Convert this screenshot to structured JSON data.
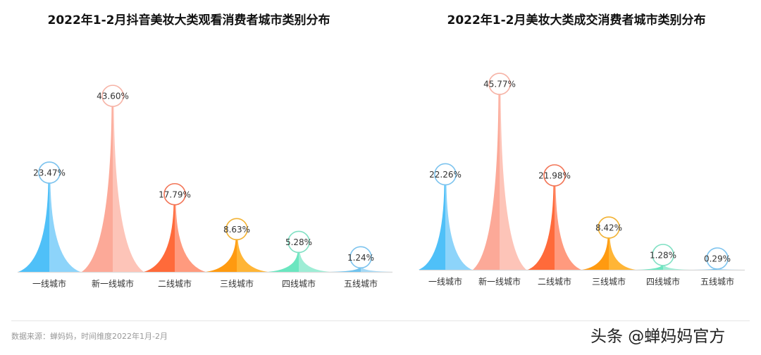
{
  "chart_data": [
    {
      "type": "bar",
      "title": "2022年1-2月抖音美妆大类观看消费者城市类别分布",
      "categories": [
        "一线城市",
        "新一线城市",
        "二线城市",
        "三线城市",
        "四线城市",
        "五线城市"
      ],
      "values": [
        23.47,
        43.6,
        17.79,
        8.63,
        5.28,
        1.24
      ],
      "labels": [
        "23.47%",
        "43.60%",
        "17.79%",
        "8.63%",
        "5.28%",
        "1.24%"
      ],
      "unit": "%",
      "xlabel": "",
      "ylabel": "",
      "grid": false,
      "legend": null
    },
    {
      "type": "bar",
      "title": "2022年1-2月美妆大类成交消费者城市类别分布",
      "categories": [
        "一线城市",
        "新一线城市",
        "二线城市",
        "三线城市",
        "四线城市",
        "五线城市"
      ],
      "values": [
        22.26,
        45.77,
        21.98,
        8.42,
        1.28,
        0.29
      ],
      "labels": [
        "22.26%",
        "45.77%",
        "21.98%",
        "8.42%",
        "1.28%",
        "0.29%"
      ],
      "unit": "%",
      "xlabel": "",
      "ylabel": "",
      "grid": false,
      "legend": null
    }
  ],
  "colors": [
    {
      "dark": "#4FC0F8",
      "light": "#8DD4FA",
      "ring": "#7CC3EE"
    },
    {
      "dark": "#FCA998",
      "light": "#FDC4B8",
      "ring": "#F6B3A6"
    },
    {
      "dark": "#FF6A3A",
      "light": "#FF9A7E",
      "ring": "#F27456"
    },
    {
      "dark": "#FF9A10",
      "light": "#FFB536",
      "ring": "#F2B233"
    },
    {
      "dark": "#6BE6C0",
      "light": "#9EEDD5",
      "ring": "#7FE0C3"
    },
    {
      "dark": "#6FC3EE",
      "light": "#A6D9F5",
      "ring": "#7CC3EE"
    }
  ],
  "footer": {
    "source": "数据来源：蝉妈妈，时间维度2022年1月-2月",
    "watermark": "头条 @蝉妈妈官方"
  }
}
